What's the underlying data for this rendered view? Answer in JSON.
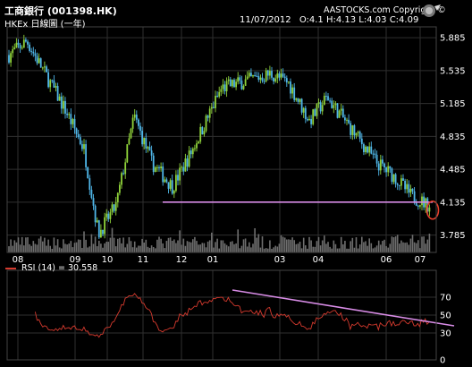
{
  "header": {
    "title": "工商銀行 (001398.HK)",
    "subtitle": "HKEx 日線圖 (一年)",
    "date": "11/07/2012",
    "ohlc": "O:4.1  H:4.13  L:4.03  C:4.09",
    "copyright": "AASTOCKS.com Copyright ©"
  },
  "rsi": {
    "label": "RSI (14) = 30.558",
    "color": "#d53a2e"
  },
  "colors": {
    "background": "#000000",
    "grid": "#2f2f2f",
    "candle_up": "#8fd23a",
    "candle_down": "#4fb6e8",
    "support_line": "#d88ce6",
    "highlight_circle": "#e8402d",
    "volume": "#6e6e6e"
  },
  "chart_data": [
    {
      "type": "candlestick",
      "title": "工商銀行 (001398.HK)",
      "x_tick_labels": [
        "08",
        "09",
        "10",
        "11",
        "12",
        "01",
        "03",
        "04",
        "06",
        "07"
      ],
      "y_tick_labels": [
        "5.885",
        "5.535",
        "5.185",
        "4.835",
        "4.485",
        "4.135",
        "3.785"
      ],
      "ylim": [
        3.6,
        6.0
      ],
      "annotations": [
        {
          "type": "horizontal_line",
          "y": 4.135,
          "from": "11",
          "to": "07"
        },
        {
          "type": "circle",
          "at": "07",
          "y": 4.05
        }
      ],
      "price_path": [
        [
          "08",
          5.7
        ],
        [
          "08",
          5.85
        ],
        [
          "09",
          5.1
        ],
        [
          "09",
          4.7
        ],
        [
          "10",
          3.8
        ],
        [
          "10",
          4.1
        ],
        [
          "11",
          5.05
        ],
        [
          "11",
          4.55
        ],
        [
          "12",
          4.3
        ],
        [
          "12",
          4.65
        ],
        [
          "01",
          4.95
        ],
        [
          "01",
          5.35
        ],
        [
          "03",
          5.5
        ],
        [
          "03",
          5.4
        ],
        [
          "04",
          5.0
        ],
        [
          "04",
          5.25
        ],
        [
          "06",
          4.55
        ],
        [
          "06",
          4.4
        ],
        [
          "07",
          4.2
        ],
        [
          "07",
          4.09
        ]
      ]
    },
    {
      "type": "line",
      "title": "RSI (14) = 30.558",
      "y_tick_labels": [
        "70",
        "50",
        "30",
        "0"
      ],
      "ylim": [
        0,
        100
      ],
      "series": [
        {
          "name": "RSI (14)",
          "current": 30.558
        }
      ],
      "annotations": [
        {
          "type": "trend_line",
          "from": [
            "01",
            78
          ],
          "to": [
            "07",
            42
          ]
        }
      ]
    }
  ]
}
